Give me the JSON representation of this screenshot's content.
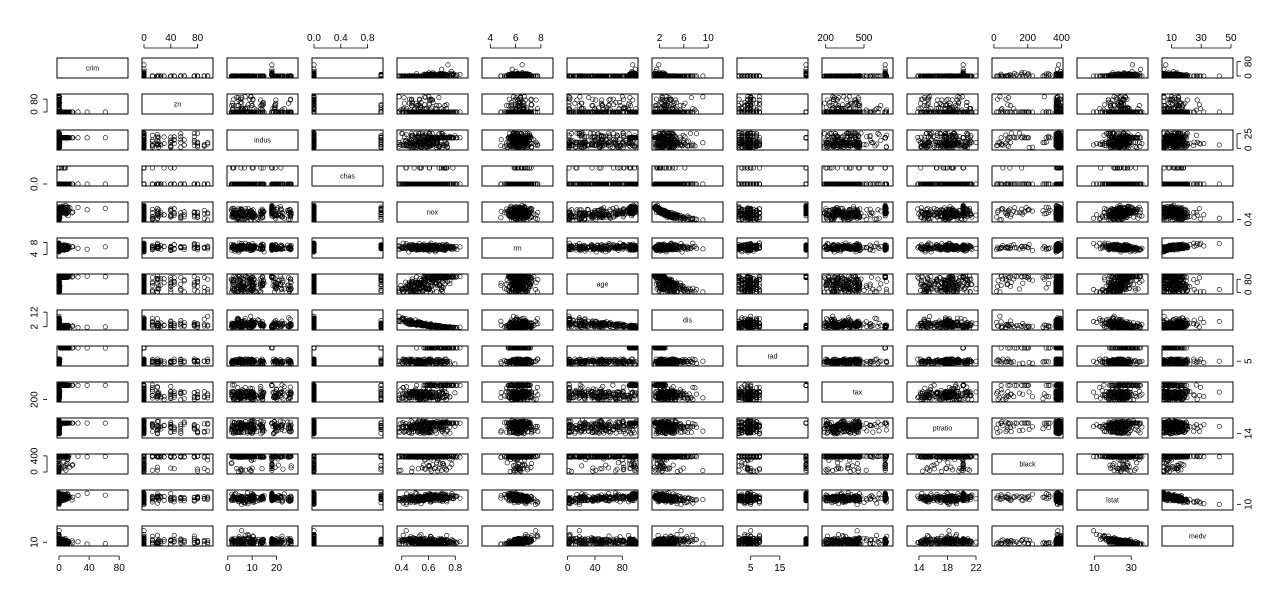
{
  "chart_data": {
    "type": "scatter",
    "title": "",
    "variables": [
      {
        "name": "crim",
        "range": [
          0,
          89
        ],
        "ticks": [
          0,
          40,
          80
        ]
      },
      {
        "name": "zn",
        "range": [
          0,
          100
        ],
        "ticks": [
          0,
          40,
          80
        ]
      },
      {
        "name": "indus",
        "range": [
          0.5,
          28
        ],
        "ticks": [
          0,
          10,
          20
        ]
      },
      {
        "name": "chas",
        "range": [
          0,
          1
        ],
        "ticks": [
          0.0,
          0.4,
          0.8
        ]
      },
      {
        "name": "nox",
        "range": [
          0.38,
          0.88
        ],
        "ticks": [
          0.4,
          0.6,
          0.8
        ]
      },
      {
        "name": "rm",
        "range": [
          3.5,
          8.8
        ],
        "ticks": [
          4,
          6,
          8
        ]
      },
      {
        "name": "age",
        "range": [
          2,
          100
        ],
        "ticks": [
          0,
          40,
          80
        ]
      },
      {
        "name": "dis",
        "range": [
          1.1,
          12.1
        ],
        "ticks": [
          2,
          6,
          10
        ]
      },
      {
        "name": "rad",
        "range": [
          1,
          24
        ],
        "ticks": [
          5,
          15
        ]
      },
      {
        "name": "tax",
        "range": [
          187,
          711
        ],
        "ticks": [
          200,
          500
        ]
      },
      {
        "name": "ptratio",
        "range": [
          12.6,
          22
        ],
        "ticks": [
          14,
          18,
          22
        ]
      },
      {
        "name": "black",
        "range": [
          0.3,
          397
        ],
        "ticks": [
          0,
          200,
          400
        ]
      },
      {
        "name": "lstat",
        "range": [
          1.7,
          38
        ],
        "ticks": [
          10,
          30
        ]
      },
      {
        "name": "medv",
        "range": [
          5,
          50
        ],
        "ticks": [
          10,
          30,
          50
        ]
      }
    ],
    "left_axis_ticks": {
      "zn": [
        "0",
        "80"
      ],
      "chas": [
        "0.0"
      ],
      "rm": [
        "4",
        "8"
      ],
      "dis": [
        "2",
        "12"
      ],
      "tax": [
        "200"
      ],
      "black": [
        "0",
        "400"
      ],
      "medv": [
        "10"
      ]
    },
    "right_axis_ticks": {
      "crim": [
        "0",
        "80"
      ],
      "indus": [
        "0",
        "25"
      ],
      "nox": [
        "0.4"
      ],
      "age": [
        "0",
        "80"
      ],
      "rad": [
        "5"
      ],
      "ptratio": [
        "14"
      ],
      "lstat": [
        "10"
      ]
    },
    "top_axis_ticks": {
      "zn": [
        "0",
        "40",
        "80"
      ],
      "chas": [
        "0.0",
        "0.4",
        "0.8"
      ],
      "rm": [
        "4",
        "6",
        "8"
      ],
      "dis": [
        "2",
        "6",
        "10"
      ],
      "tax": [
        "200",
        "500"
      ],
      "black": [
        "0",
        "200",
        "400"
      ],
      "medv": [
        "10",
        "30",
        "50"
      ]
    },
    "bottom_axis_ticks": {
      "crim": [
        "0",
        "40",
        "80"
      ],
      "indus": [
        "0",
        "10",
        "20"
      ],
      "nox": [
        "0.4",
        "0.6",
        "0.8"
      ],
      "age": [
        "0",
        "40",
        "80"
      ],
      "rad": [
        "5",
        "15"
      ],
      "ptratio": [
        "14",
        "18",
        "22"
      ],
      "lstat": [
        "10",
        "30"
      ]
    },
    "marker": "open-circle",
    "grid": false,
    "legend": "none",
    "n_points": 506
  }
}
